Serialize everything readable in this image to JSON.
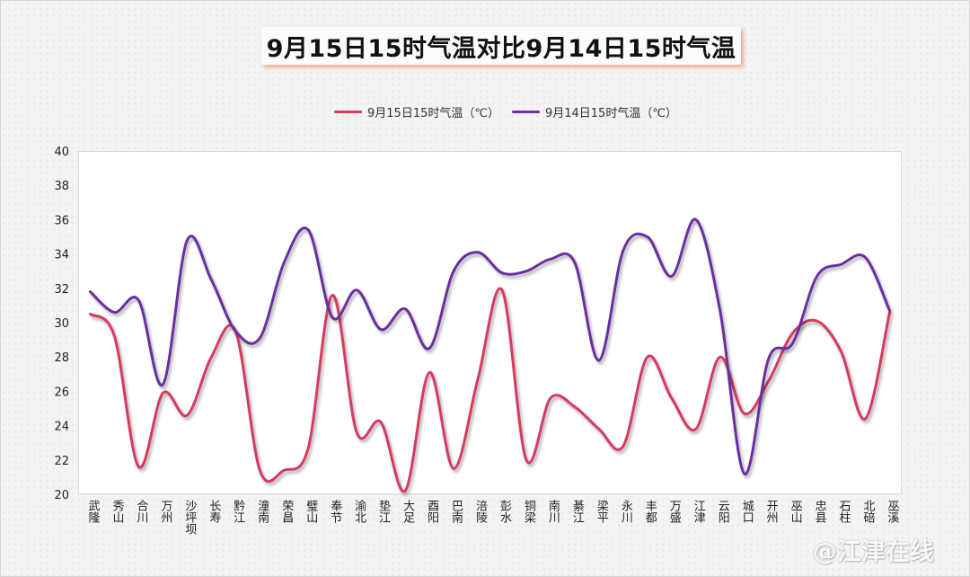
{
  "chart_data": {
    "type": "line",
    "title": "9月15日15时气温对比9月14日15时气温",
    "categories": [
      "武隆",
      "秀山",
      "合川",
      "万州",
      "沙坪坝",
      "长寿",
      "黔江",
      "潼南",
      "荣昌",
      "璧山",
      "奉节",
      "渝北",
      "垫江",
      "大足",
      "酉阳",
      "巴南",
      "涪陵",
      "彭水",
      "铜梁",
      "南川",
      "綦江",
      "梁平",
      "永川",
      "丰都",
      "万盛",
      "江津",
      "云阳",
      "城口",
      "开州",
      "巫山",
      "忠县",
      "石柱",
      "北碚",
      "巫溪"
    ],
    "series": [
      {
        "name": "9月15日15时气温（℃）",
        "color": "#d63a5e",
        "values": [
          30.5,
          29.2,
          21.6,
          25.9,
          24.6,
          28.0,
          29.5,
          21.4,
          21.4,
          22.7,
          31.6,
          23.6,
          24.2,
          20.2,
          27.1,
          21.5,
          26.7,
          31.9,
          22.0,
          25.6,
          25.1,
          23.8,
          22.8,
          28.0,
          25.6,
          23.8,
          28.0,
          24.7,
          26.6,
          29.4,
          30.1,
          28.3,
          24.4,
          30.6
        ]
      },
      {
        "name": "9月14日15时气温（℃）",
        "color": "#6a2fa2",
        "values": [
          31.8,
          30.6,
          31.3,
          26.4,
          34.8,
          32.5,
          29.5,
          29.1,
          33.5,
          35.4,
          30.3,
          31.9,
          29.6,
          30.8,
          28.5,
          33.0,
          34.1,
          32.9,
          33.0,
          33.7,
          33.5,
          27.8,
          34.2,
          35.0,
          32.7,
          36.0,
          30.7,
          21.2,
          27.9,
          28.8,
          32.7,
          33.4,
          33.8,
          30.7
        ]
      }
    ],
    "ylim": [
      20,
      40
    ],
    "yticks": [
      20,
      22,
      24,
      26,
      28,
      30,
      32,
      34,
      36,
      38,
      40
    ],
    "legend_position": "top",
    "grid": false
  },
  "watermark": "@江津在线"
}
